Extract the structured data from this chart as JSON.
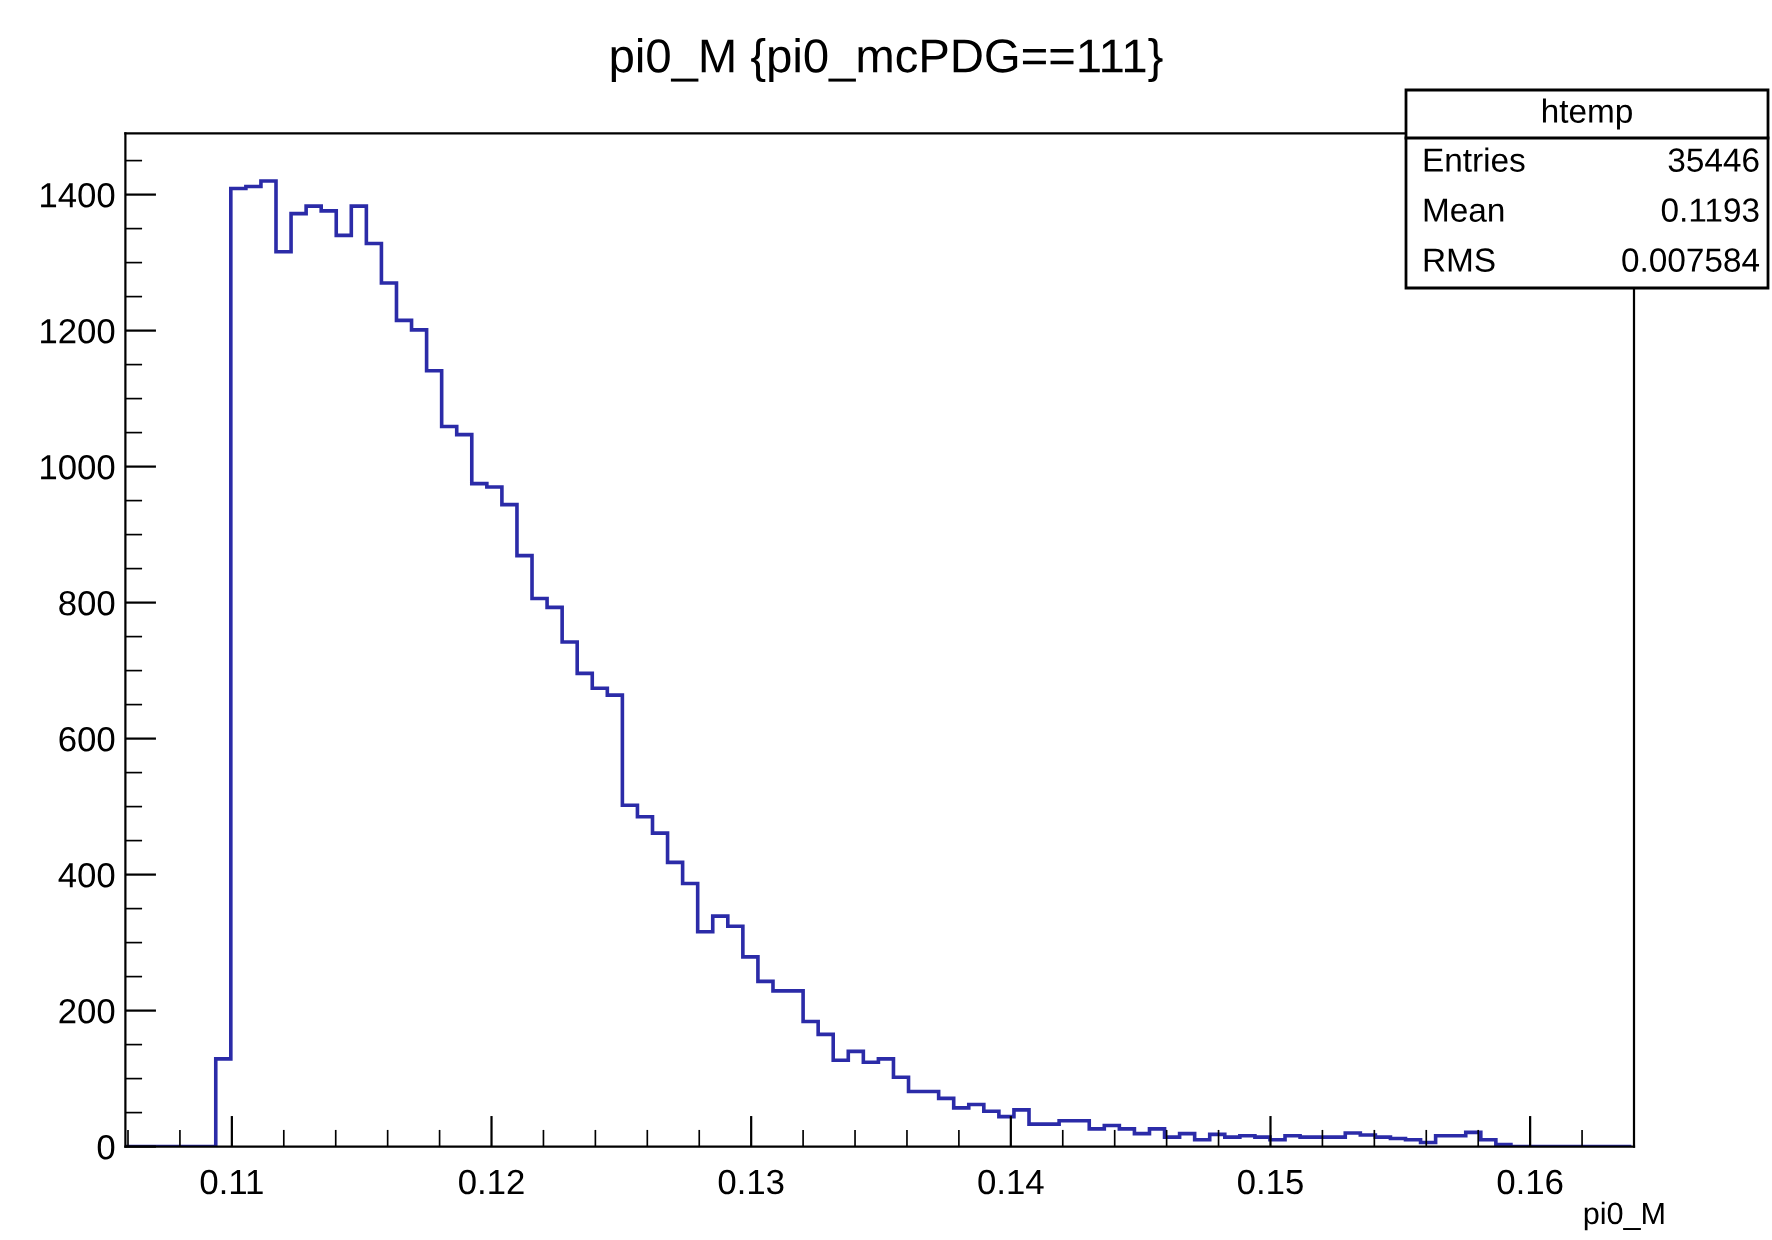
{
  "chart_data": {
    "type": "histogram",
    "title": "pi0_M {pi0_mcPDG==111}",
    "xlabel": "pi0_M",
    "bins": [
      0.1059,
      0.10648,
      0.10706,
      0.10764,
      0.10822,
      0.1088,
      0.10938,
      0.10996,
      0.11054,
      0.11112,
      0.1117,
      0.11228,
      0.11286,
      0.11344,
      0.11402,
      0.1146,
      0.11518,
      0.11576,
      0.11634,
      0.11692,
      0.1175,
      0.11808,
      0.11866,
      0.11924,
      0.11982,
      0.1204,
      0.12098,
      0.12156,
      0.12214,
      0.12272,
      0.1233,
      0.12388,
      0.12446,
      0.12504,
      0.12562,
      0.1262,
      0.12678,
      0.12736,
      0.12794,
      0.12852,
      0.1291,
      0.12968,
      0.13026,
      0.13084,
      0.13142,
      0.132,
      0.13258,
      0.13316,
      0.13374,
      0.13432,
      0.1349,
      0.13548,
      0.13606,
      0.13664,
      0.13722,
      0.1378,
      0.13838,
      0.13896,
      0.13954,
      0.14012,
      0.1407,
      0.14128,
      0.14186,
      0.14244,
      0.14302,
      0.1436,
      0.14418,
      0.14476,
      0.14534,
      0.14592,
      0.1465,
      0.14708,
      0.14766,
      0.14824,
      0.14882,
      0.1494,
      0.14998,
      0.15056,
      0.15114,
      0.15172,
      0.1523,
      0.15288,
      0.15346,
      0.15404,
      0.15462,
      0.1552,
      0.15578,
      0.15636,
      0.15694,
      0.15752,
      0.1581,
      0.15868,
      0.15926,
      0.15984,
      0.16042,
      0.161,
      0.16158,
      0.16216,
      0.16274,
      0.16332,
      0.1639
    ],
    "values": [
      0,
      0,
      0,
      0,
      0,
      0,
      129,
      1409,
      1412,
      1420,
      1316,
      1372,
      1383,
      1376,
      1340,
      1383,
      1328,
      1270,
      1215,
      1201,
      1141,
      1059,
      1047,
      975,
      970,
      944,
      869,
      806,
      793,
      742,
      696,
      674,
      664,
      502,
      485,
      461,
      418,
      387,
      316,
      339,
      324,
      279,
      243,
      229,
      229,
      184,
      165,
      127,
      140,
      124,
      129,
      102,
      81,
      81,
      71,
      57,
      62,
      52,
      44,
      54,
      33,
      33,
      38,
      38,
      26,
      31,
      26,
      19,
      26,
      14,
      19,
      10,
      18,
      14,
      16,
      14,
      10,
      16,
      14,
      14,
      14,
      20,
      17,
      14,
      12,
      10,
      6,
      16,
      16,
      21,
      10,
      3,
      0,
      0,
      0,
      0,
      0,
      0,
      0,
      0
    ],
    "color": "#2b2ba8",
    "xlim": [
      0.1059,
      0.164
    ],
    "xticks": [
      0.11,
      0.12,
      0.13,
      0.14,
      0.15,
      0.16
    ],
    "ylim": [
      0,
      1490
    ],
    "yticks": [
      0,
      200,
      400,
      600,
      800,
      1000,
      1200,
      1400
    ],
    "grid": false,
    "annotations": [
      "htemp",
      "Entries 35446",
      "Mean 0.1193",
      "RMS 0.007584"
    ]
  }
}
